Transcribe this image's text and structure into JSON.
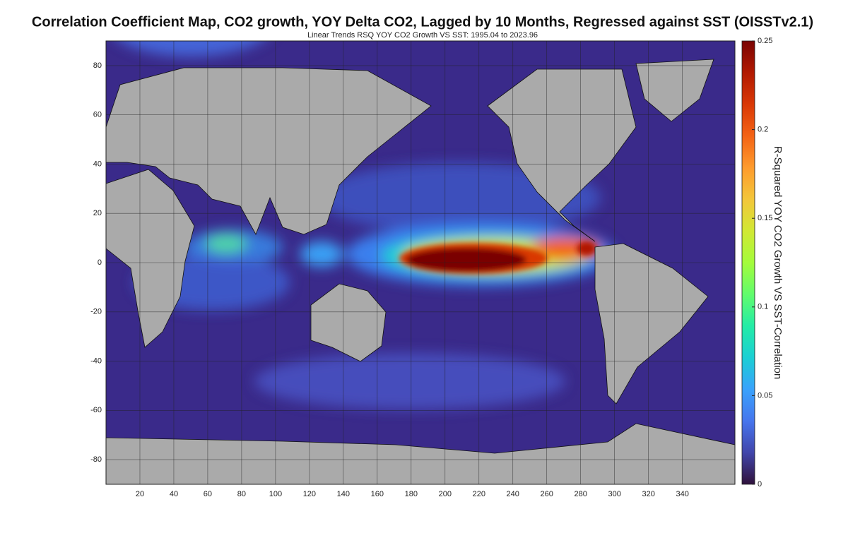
{
  "chart_data": {
    "type": "map",
    "title": "Correlation Coefficient Map, CO2 growth, YOY Delta CO2, Lagged by 10 Months, Regressed against SST (OISSTv2.1)",
    "subtitle": "Linear Trends RSQ YOY CO2 Growth VS SST: 1995.04 to 2023.96",
    "xlim": [
      0,
      371
    ],
    "xticks": [
      20,
      40,
      60,
      80,
      100,
      120,
      140,
      160,
      180,
      200,
      220,
      240,
      260,
      280,
      300,
      320,
      340
    ],
    "ylim": [
      -90,
      90
    ],
    "yticks": [
      -80,
      -60,
      -40,
      -20,
      0,
      20,
      40,
      60,
      80
    ],
    "grid": true,
    "colorbar": {
      "label": "R-Squared YOY CO2 Growth VS SST-Correlation",
      "lim": [
        0,
        0.25
      ],
      "ticks": [
        0,
        0.05,
        0.1,
        0.15,
        0.2,
        0.25
      ],
      "colormap": [
        "#30123b",
        "#4145ab",
        "#4675ed",
        "#39a2fc",
        "#1bcfd4",
        "#24eca6",
        "#61fc6c",
        "#a4fc3b",
        "#d1e834",
        "#f3c63a",
        "#fe9b2d",
        "#f36315",
        "#d93806",
        "#b11901",
        "#7a0403"
      ]
    }
  }
}
